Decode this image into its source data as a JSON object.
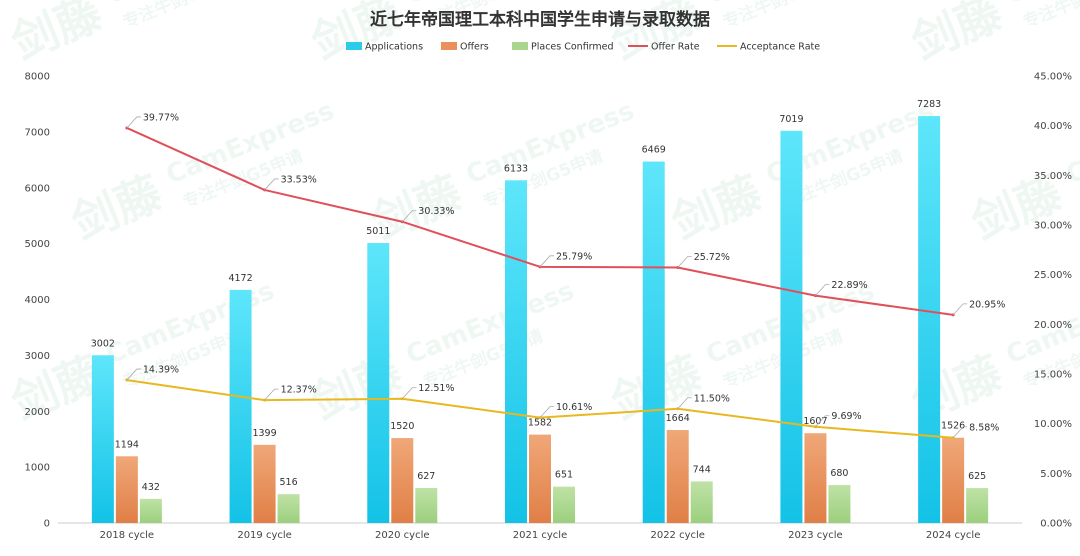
{
  "chart_data": {
    "type": "bar",
    "title": "近七年帝国理工本科中国学生申请与录取数据",
    "categories": [
      "2018 cycle",
      "2019 cycle",
      "2020 cycle",
      "2021 cycle",
      "2022 cycle",
      "2023 cycle",
      "2024 cycle"
    ],
    "series": [
      {
        "name": "Applications",
        "kind": "bar",
        "axis": "left",
        "color": "#2bcbea",
        "values": [
          3002,
          4172,
          5011,
          6133,
          6469,
          7019,
          7283
        ]
      },
      {
        "name": "Offers",
        "kind": "bar",
        "axis": "left",
        "color": "#e8915c",
        "values": [
          1194,
          1399,
          1520,
          1582,
          1664,
          1607,
          1526
        ]
      },
      {
        "name": "Places Confirmed",
        "kind": "bar",
        "axis": "left",
        "color": "#a9d68e",
        "values": [
          432,
          516,
          627,
          651,
          744,
          680,
          625
        ]
      },
      {
        "name": "Offer Rate",
        "kind": "line",
        "axis": "right",
        "color": "#e0505a",
        "values": [
          39.77,
          33.53,
          30.33,
          25.79,
          25.72,
          22.89,
          20.95
        ],
        "labels": [
          "39.77%",
          "33.53%",
          "30.33%",
          "25.79%",
          "25.72%",
          "22.89%",
          "20.95%"
        ]
      },
      {
        "name": "Acceptance Rate",
        "kind": "line",
        "axis": "right",
        "color": "#e8b820",
        "values": [
          14.39,
          12.37,
          12.51,
          10.61,
          11.5,
          9.69,
          8.58
        ],
        "labels": [
          "14.39%",
          "12.37%",
          "12.51%",
          "10.61%",
          "11.50%",
          "9.69%",
          "8.58%"
        ]
      }
    ],
    "y_left": {
      "min": 0,
      "max": 8000,
      "ticks": [
        "0",
        "1000",
        "2000",
        "3000",
        "4000",
        "5000",
        "6000",
        "7000",
        "8000"
      ]
    },
    "y_right": {
      "min": 0,
      "max": 45,
      "ticks": [
        "0.00%",
        "5.00%",
        "10.00%",
        "15.00%",
        "20.00%",
        "25.00%",
        "30.00%",
        "35.00%",
        "40.00%",
        "45.00%"
      ]
    },
    "legend_position": "top-center",
    "grid": false,
    "watermark": "CamExpress 剑藤 专注牛剑G5申请"
  }
}
